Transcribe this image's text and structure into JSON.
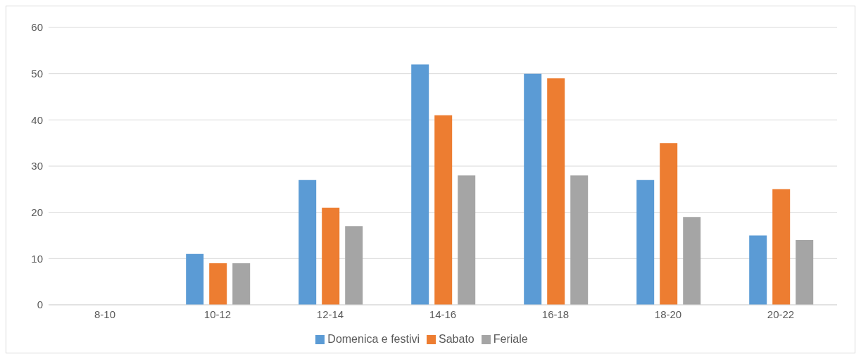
{
  "chart_data": {
    "type": "bar",
    "categories": [
      "8-10",
      "10-12",
      "12-14",
      "14-16",
      "16-18",
      "18-20",
      "20-22"
    ],
    "series": [
      {
        "name": "Domenica e festivi",
        "color": "#5b9bd5",
        "values": [
          0,
          11,
          27,
          52,
          50,
          27,
          15
        ]
      },
      {
        "name": "Sabato",
        "color": "#ed7d31",
        "values": [
          0,
          9,
          21,
          41,
          49,
          35,
          25
        ]
      },
      {
        "name": "Feriale",
        "color": "#a5a5a5",
        "values": [
          0,
          9,
          17,
          28,
          28,
          19,
          14
        ]
      }
    ],
    "ylim": [
      0,
      60
    ],
    "yticks": [
      0,
      10,
      20,
      30,
      40,
      50,
      60
    ],
    "grid": "y",
    "legend": "bottom"
  }
}
